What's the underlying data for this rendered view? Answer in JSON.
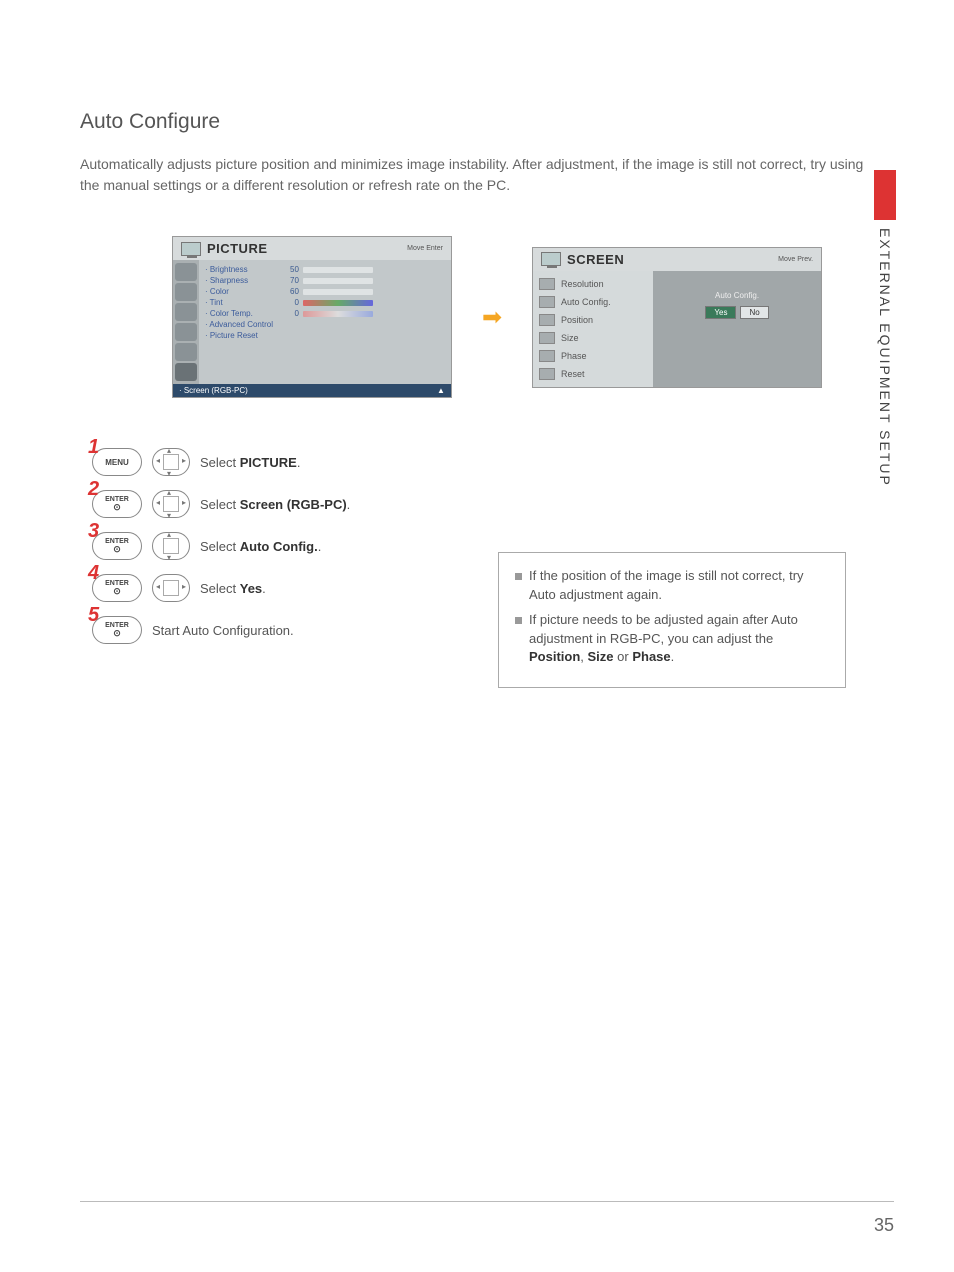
{
  "heading": "Auto Configure",
  "intro": "Automatically adjusts picture position and minimizes image instability. After adjustment, if the image is still not correct, try using the manual settings or a different resolution or refresh rate on the PC.",
  "sideLabel": "EXTERNAL EQUIPMENT SETUP",
  "pictureMenu": {
    "title": "PICTURE",
    "hint": "Move    Enter",
    "items": [
      {
        "label": "· Brightness",
        "value": "50",
        "fillPct": 50
      },
      {
        "label": "· Sharpness",
        "value": "70",
        "fillPct": 70
      },
      {
        "label": "· Color",
        "value": "60",
        "fillPct": 60
      },
      {
        "label": "· Tint",
        "value": "0",
        "barClass": "tint"
      },
      {
        "label": "· Color Temp.",
        "value": "0",
        "barClass": "wc"
      },
      {
        "label": "· Advanced Control",
        "noBar": true
      },
      {
        "label": "· Picture Reset",
        "noBar": true
      }
    ],
    "highlight": "· Screen (RGB-PC)"
  },
  "screenMenu": {
    "title": "SCREEN",
    "hint": "Move    Prev.",
    "list": [
      "Resolution",
      "Auto Config.",
      "Position",
      "Size",
      "Phase",
      "Reset"
    ],
    "rightLabel": "Auto Config.",
    "yes": "Yes",
    "no": "No"
  },
  "steps": [
    {
      "n": "1",
      "btn": "MENU",
      "pad": "4way",
      "text": "Select ",
      "bold": "PICTURE",
      "after": "."
    },
    {
      "n": "2",
      "btn": "ENTER",
      "pad": "4way",
      "text": "Select ",
      "bold": "Screen (RGB-PC)",
      "after": "."
    },
    {
      "n": "3",
      "btn": "ENTER",
      "pad": "ud",
      "text": "Select ",
      "bold": "Auto Config.",
      "after": "."
    },
    {
      "n": "4",
      "btn": "ENTER",
      "pad": "lr",
      "text": "Select ",
      "bold": "Yes",
      "after": "."
    },
    {
      "n": "5",
      "btn": "ENTER",
      "pad": "",
      "text": "Start Auto Configuration.",
      "bold": "",
      "after": ""
    }
  ],
  "notes": [
    {
      "pre": "If the position of the image is still not correct, try Auto adjustment again.",
      "bolds": []
    },
    {
      "pre": "If picture needs to be adjusted again after Auto adjustment in RGB-PC, you can adjust the ",
      "b1": "Position",
      "mid": ", ",
      "b2": "Size",
      "mid2": " or ",
      "b3": "Phase",
      "after": "."
    }
  ],
  "pageNum": "35"
}
